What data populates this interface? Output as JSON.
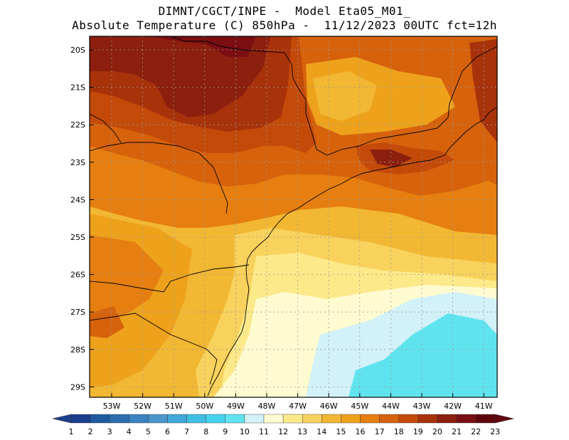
{
  "title": {
    "line1": "DIMNT/CGCT/INPE -  Model Eta05_M01_",
    "line2": "Absolute Temperature (C) 850hPa -  11/12/2023 00UTC fct=12h"
  },
  "map": {
    "lat_labels": [
      "20S",
      "21S",
      "22S",
      "23S",
      "24S",
      "25S",
      "26S",
      "27S",
      "28S",
      "29S"
    ],
    "lon_labels": [
      "53W",
      "52W",
      "51W",
      "50W",
      "49W",
      "48W",
      "47W",
      "46W",
      "45W",
      "44W",
      "43W",
      "42W",
      "41W"
    ],
    "field": "temperature_850hPa",
    "colors": {
      "t22": "#7a0e12",
      "t21": "#8c1f0d",
      "t20": "#a8320a",
      "t19": "#c44a0a",
      "t18": "#d6620c",
      "t17": "#e67f0f",
      "t16": "#eea21b",
      "t15": "#f2b733",
      "t14": "#f8d25c",
      "t13": "#fce98a",
      "t12": "#fffbd0",
      "t11": "#d2f1f8",
      "t10": "#5fe4ef",
      "grid": "#9a9a9a",
      "coast": "#000000"
    }
  },
  "colorbar": {
    "labels": [
      "1",
      "2",
      "3",
      "4",
      "5",
      "6",
      "7",
      "8",
      "9",
      "10",
      "11",
      "12",
      "13",
      "14",
      "15",
      "16",
      "17",
      "18",
      "19",
      "20",
      "21",
      "22",
      "23"
    ],
    "colors": [
      "#1b3f8f",
      "#1f5aa0",
      "#2b6db0",
      "#3b82c0",
      "#4a96cc",
      "#3fa8d8",
      "#40bfe4",
      "#47d3ee",
      "#5fe4ef",
      "#d2f1f8",
      "#fffbd0",
      "#fce98a",
      "#f8d25c",
      "#f2b733",
      "#eea21b",
      "#e67f0f",
      "#d6620c",
      "#c44a0a",
      "#a8320a",
      "#8c1f0d",
      "#7a0e12",
      "#60040c"
    ]
  }
}
